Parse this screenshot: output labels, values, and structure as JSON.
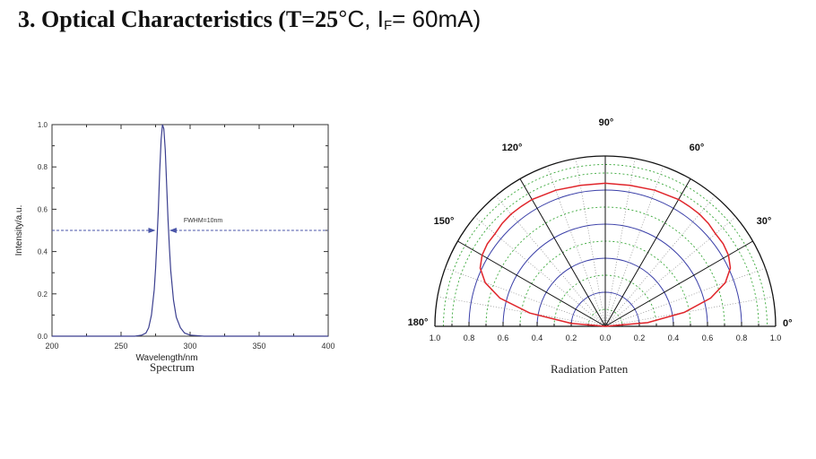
{
  "title": {
    "main": "3. Optical Characteristics (T=25",
    "degree_unit": "°C, I",
    "subscript": "F",
    "tail": "= 60mA)"
  },
  "charts": {
    "spectrum": {
      "caption": "Spectrum",
      "annotation": "FWHM=10nm"
    },
    "radiation": {
      "caption": "Radiation Patten"
    }
  },
  "chart_data": [
    {
      "type": "line",
      "name": "spectrum",
      "xlabel": "Wavelength/nm",
      "ylabel": "Intensity/a.u.",
      "xlim": [
        200,
        400
      ],
      "ylim": [
        0,
        1.0
      ],
      "x_ticks": [
        "200",
        "250",
        "300",
        "350",
        "400"
      ],
      "y_ticks": [
        "0.0",
        "0.2",
        "0.4",
        "0.6",
        "0.8",
        "1.0"
      ],
      "grid": false,
      "series": [
        {
          "x": [
            200,
            260,
            265,
            268,
            270,
            272,
            274,
            275,
            276,
            277,
            278,
            279,
            280,
            281,
            282,
            283,
            284,
            285,
            286,
            288,
            290,
            293,
            296,
            300,
            310,
            400
          ],
          "y": [
            0,
            0,
            0.005,
            0.015,
            0.04,
            0.1,
            0.22,
            0.32,
            0.45,
            0.6,
            0.78,
            0.93,
            1.0,
            0.98,
            0.88,
            0.72,
            0.55,
            0.42,
            0.31,
            0.17,
            0.09,
            0.04,
            0.015,
            0.005,
            0,
            0
          ]
        }
      ],
      "annotation": {
        "text": "FWHM=10nm",
        "y": 0.5,
        "x_left": 275,
        "x_right": 285
      }
    },
    {
      "type": "polar",
      "name": "radiation",
      "angle_range": [
        0,
        180
      ],
      "angle_labels": [
        "0°",
        "30°",
        "60°",
        "90°",
        "120°",
        "150°",
        "180°"
      ],
      "radial_ticks": [
        "1.0",
        "0.8",
        "0.6",
        "0.4",
        "0.2",
        "0.0",
        "0.2",
        "0.4",
        "0.6",
        "0.8",
        "1.0"
      ],
      "rlim": [
        0,
        1.0
      ],
      "series": [
        {
          "angles": [
            0,
            5,
            10,
            15,
            20,
            25,
            30,
            35,
            40,
            45,
            50,
            55,
            60,
            70,
            80,
            90,
            100,
            110,
            120,
            125,
            130,
            135,
            140,
            145,
            150,
            155,
            160,
            165,
            170,
            175,
            180
          ],
          "r": [
            0,
            0.25,
            0.47,
            0.64,
            0.75,
            0.81,
            0.835,
            0.845,
            0.845,
            0.855,
            0.86,
            0.86,
            0.86,
            0.85,
            0.84,
            0.84,
            0.84,
            0.85,
            0.86,
            0.86,
            0.86,
            0.855,
            0.845,
            0.845,
            0.835,
            0.81,
            0.75,
            0.64,
            0.45,
            0.2,
            0
          ]
        }
      ]
    }
  ]
}
